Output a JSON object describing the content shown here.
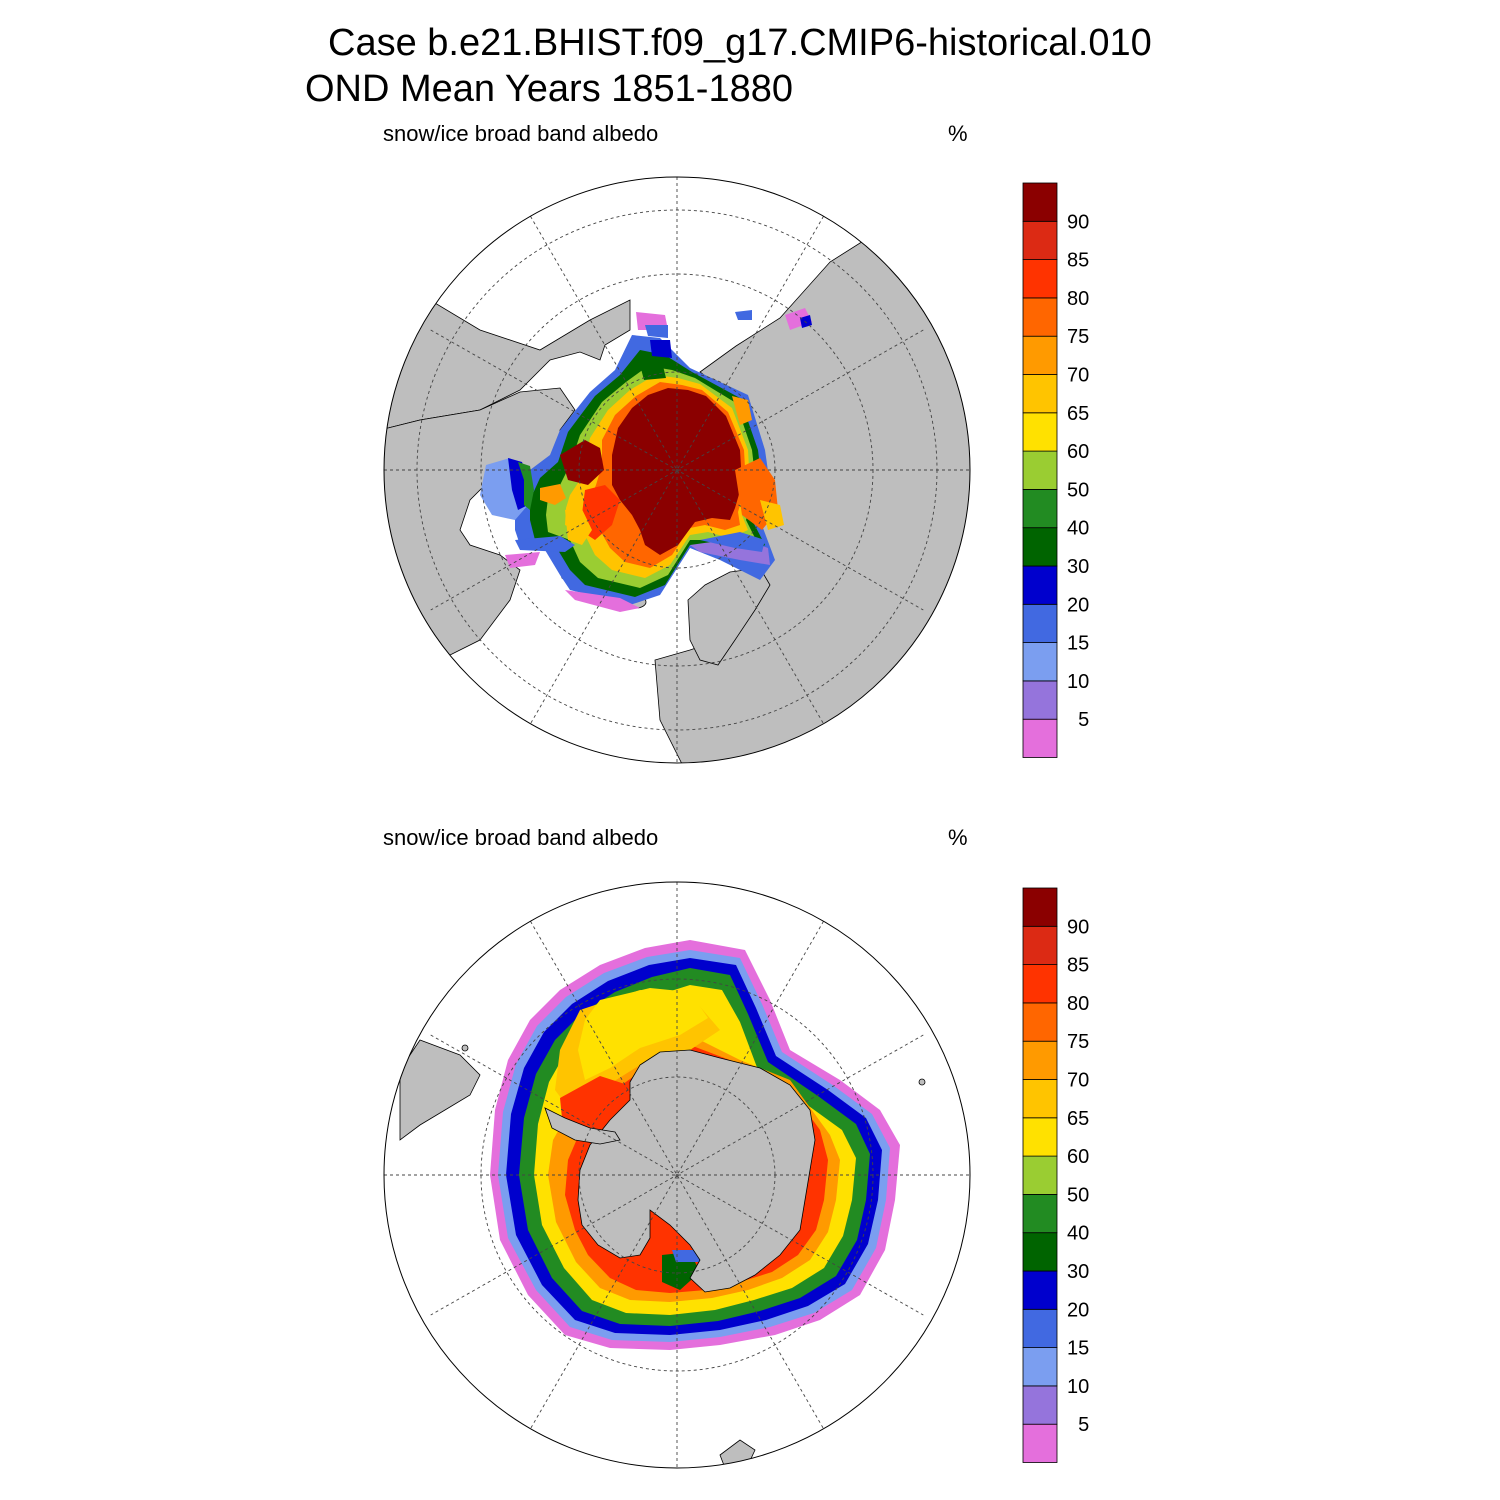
{
  "title": {
    "line1": "Case b.e21.BHIST.f09_g17.CMIP6-historical.010",
    "line2": "OND Mean   Years 1851-1880"
  },
  "colors": {
    "land": "#bebebe",
    "ocean": "#ffffff",
    "levels": [
      "#e46fdc",
      "#9574dc",
      "#7b9ef0",
      "#4169e1",
      "#0000cd",
      "#006400",
      "#228b22",
      "#9acd32",
      "#ffe100",
      "#ffc400",
      "#ff9a00",
      "#ff6600",
      "#ff3300",
      "#dc2a14",
      "#8b0000"
    ]
  },
  "colorbar_labels": [
    "5",
    "10",
    "15",
    "20",
    "30",
    "40",
    "50",
    "60",
    "65",
    "70",
    "75",
    "80",
    "85",
    "90"
  ],
  "panels": [
    {
      "id": "north",
      "hemisphere": "Northern Hemisphere",
      "variable": "snow/ice broad band albedo",
      "units": "%",
      "icons": [
        "north-polar-map-icon"
      ]
    },
    {
      "id": "south",
      "hemisphere": "Southern Hemisphere",
      "variable": "snow/ice broad band albedo",
      "units": "%",
      "icons": [
        "south-polar-map-icon"
      ]
    }
  ]
}
